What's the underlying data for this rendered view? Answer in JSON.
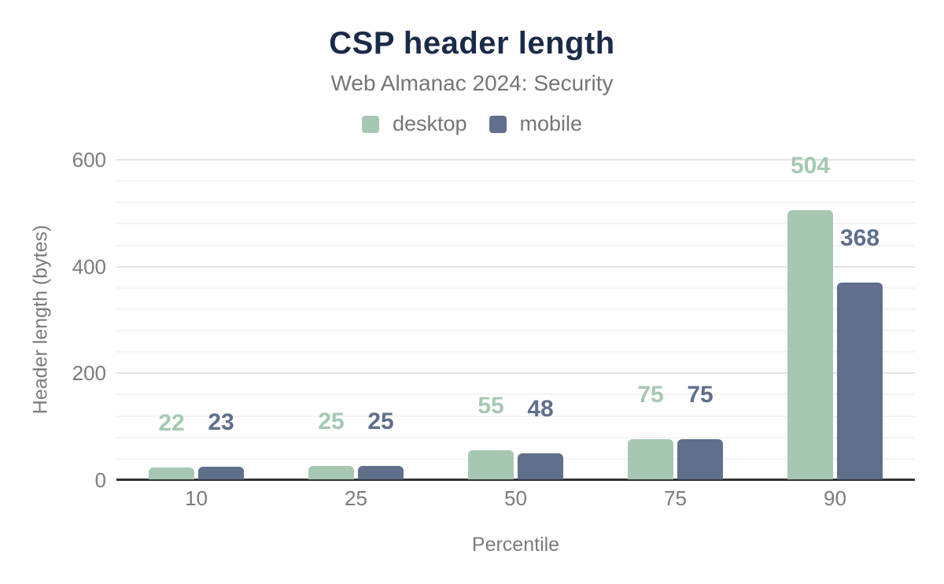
{
  "figure": {
    "title": "CSP header length",
    "subtitle": "Web Almanac 2024: Security"
  },
  "axes": {
    "x_title": "Percentile",
    "y_title": "Header length (bytes)"
  },
  "legend": {
    "items": [
      {
        "label": "desktop",
        "color": "#a6c8b3"
      },
      {
        "label": "mobile",
        "color": "#5f6f8c"
      }
    ]
  },
  "chart_data": {
    "type": "bar",
    "title": "CSP header length",
    "subtitle": "Web Almanac 2024: Security",
    "categories": [
      "10",
      "25",
      "50",
      "75",
      "90"
    ],
    "series": [
      {
        "name": "desktop",
        "color": "#a6c8b3",
        "values": [
          22,
          25,
          55,
          75,
          504
        ]
      },
      {
        "name": "mobile",
        "color": "#5f6f8c",
        "values": [
          23,
          25,
          48,
          75,
          368
        ]
      }
    ],
    "xlabel": "Percentile",
    "ylabel": "Header length (bytes)",
    "ylim": [
      0,
      600
    ],
    "yticks": [
      0,
      200,
      400,
      600
    ],
    "minor_grid_step": 40,
    "grid": true,
    "legend_position": "top",
    "data_labels": true
  },
  "colors": {
    "title": "#1a2b49",
    "text_muted": "#757575",
    "tick_text": "#7b7b7b",
    "axis_line": "#333333",
    "grid_major": "#e2e2e2",
    "grid_minor": "#f4f4f4",
    "background": "#ffffff"
  }
}
